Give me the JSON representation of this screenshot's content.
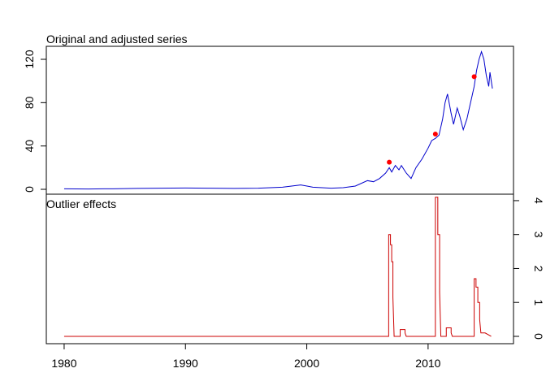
{
  "chart_data": [
    {
      "type": "line",
      "title": "Original and adjusted series",
      "xlim": [
        1978.53,
        2017.04
      ],
      "ylim": [
        -4.5,
        132
      ],
      "yticks": [
        0,
        40,
        80,
        120
      ],
      "series": [
        {
          "color": "#0000cc",
          "x": [
            1980,
            1982,
            1984,
            1986,
            1988,
            1990,
            1992,
            1994,
            1996,
            1998,
            1999.5,
            2000.5,
            2002,
            2003,
            2004,
            2005,
            2005.5,
            2006,
            2006.5,
            2006.8,
            2007,
            2007.3,
            2007.6,
            2007.8,
            2008.2,
            2008.6,
            2009,
            2009.5,
            2010,
            2010.3,
            2010.6,
            2010.9,
            2011.2,
            2011.4,
            2011.6,
            2011.9,
            2012.1,
            2012.4,
            2012.6,
            2012.9,
            2013.2,
            2013.5,
            2013.8,
            2014.0,
            2014.2,
            2014.4,
            2014.6,
            2014.8,
            2015.0,
            2015.1,
            2015.3
          ],
          "values": [
            0.5,
            0.3,
            0.5,
            0.8,
            1,
            1.2,
            1,
            0.8,
            1,
            2,
            4,
            2,
            1,
            1.5,
            3,
            8,
            7,
            10,
            15,
            20,
            16,
            22,
            18,
            22,
            15,
            10,
            20,
            28,
            38,
            45,
            47,
            50,
            65,
            80,
            88,
            70,
            60,
            75,
            68,
            55,
            65,
            80,
            95,
            110,
            120,
            127,
            120,
            105,
            95,
            108,
            93
          ]
        },
        {
          "type": "scatter",
          "color": "#ff0000",
          "x": [
            2006.8,
            2010.6,
            2013.8
          ],
          "values": [
            25,
            51,
            104
          ]
        }
      ]
    },
    {
      "type": "line",
      "title": "Outlier effects",
      "xlim": [
        1978.53,
        2017.04
      ],
      "ylim": [
        -0.216,
        4.19
      ],
      "yticks": [
        0,
        1,
        2,
        3,
        4
      ],
      "xticks": [
        1980,
        1990,
        2000,
        2010
      ],
      "series": [
        {
          "color": "#cc0000",
          "x": [
            1980,
            2006.75,
            2006.75,
            2006.9,
            2006.9,
            2007.0,
            2007.0,
            2007.1,
            2007.1,
            2007.2,
            2007.7,
            2007.7,
            2008.1,
            2008.1,
            2008.2,
            2010.6,
            2010.6,
            2010.8,
            2010.8,
            2010.95,
            2010.95,
            2011.05,
            2011.5,
            2011.5,
            2011.9,
            2011.9,
            2012.0,
            2013.8,
            2013.8,
            2013.95,
            2013.95,
            2014.1,
            2014.1,
            2014.25,
            2014.25,
            2014.35,
            2014.7,
            2014.7,
            2015.2
          ],
          "values": [
            0,
            0,
            3,
            3,
            2.7,
            2.7,
            2.2,
            2.2,
            1.15,
            0,
            0,
            0.2,
            0.2,
            0.1,
            0,
            0,
            4.1,
            4.1,
            3.0,
            3.0,
            1.3,
            0,
            0,
            0.25,
            0.25,
            0.1,
            0,
            0,
            1.7,
            1.7,
            1.45,
            1.45,
            1.0,
            1.0,
            0.5,
            0.1,
            0.1,
            0.1,
            0
          ]
        }
      ]
    }
  ]
}
